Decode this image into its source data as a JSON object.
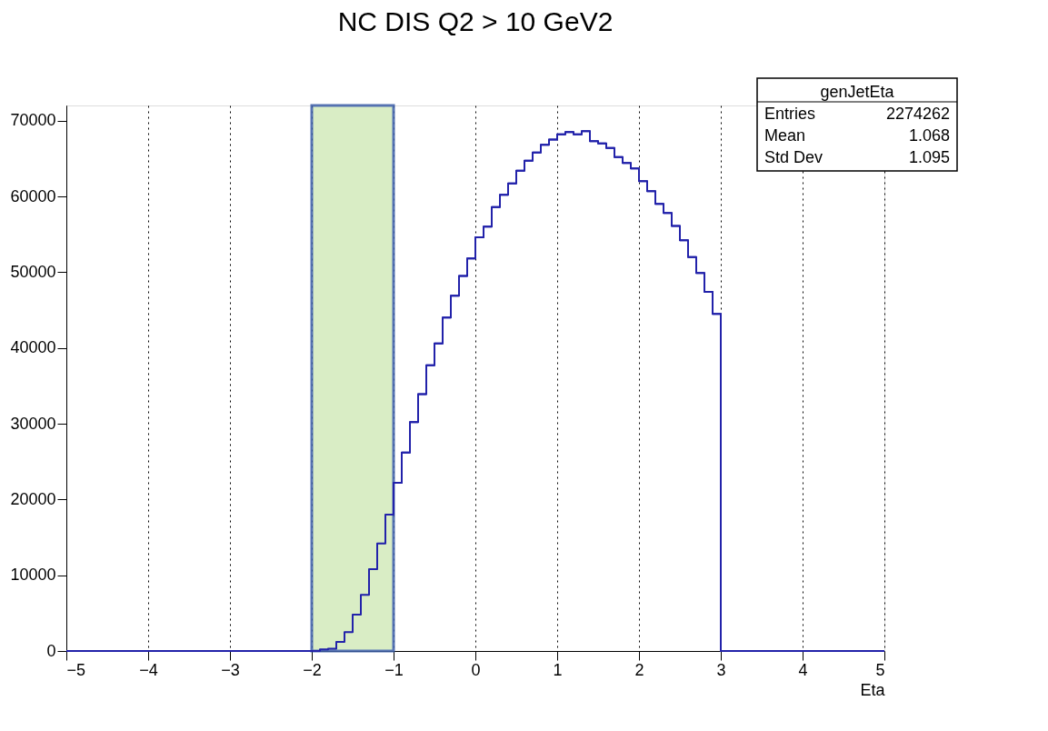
{
  "chart_data": {
    "type": "histogram",
    "title": "NC DIS Q2 > 10 GeV2",
    "xlabel": "Eta",
    "bins": [
      -5.0,
      -4.9,
      -4.8,
      -4.7,
      -4.6,
      -4.5,
      -4.4,
      -4.3,
      -4.2,
      -4.1,
      -4.0,
      -3.9,
      -3.8,
      -3.7,
      -3.6,
      -3.5,
      -3.4,
      -3.3,
      -3.2,
      -3.1,
      -3.0,
      -2.9,
      -2.8,
      -2.7,
      -2.6,
      -2.5,
      -2.4,
      -2.3,
      -2.2,
      -2.1,
      -2.0,
      -1.9,
      -1.8,
      -1.7,
      -1.6,
      -1.5,
      -1.4,
      -1.3,
      -1.2,
      -1.1,
      -1.0,
      -0.9,
      -0.8,
      -0.7,
      -0.6,
      -0.5,
      -0.4,
      -0.3,
      -0.2,
      -0.1,
      0.0,
      0.1,
      0.2,
      0.3,
      0.4,
      0.5,
      0.6,
      0.7,
      0.8,
      0.9,
      1.0,
      1.1,
      1.2,
      1.3,
      1.4,
      1.5,
      1.6,
      1.7,
      1.8,
      1.9,
      2.0,
      2.1,
      2.2,
      2.3,
      2.4,
      2.5,
      2.6,
      2.7,
      2.8,
      2.9,
      3.0,
      3.1,
      3.2,
      3.3,
      3.4,
      3.5,
      3.6,
      3.7,
      3.8,
      3.9,
      4.0,
      4.1,
      4.2,
      4.3,
      4.4,
      4.5,
      4.6,
      4.7,
      4.8,
      4.9,
      5.0
    ],
    "values": [
      0,
      0,
      0,
      0,
      0,
      0,
      0,
      0,
      0,
      0,
      0,
      0,
      0,
      0,
      0,
      0,
      0,
      0,
      0,
      0,
      0,
      0,
      0,
      0,
      0,
      0,
      0,
      0,
      0,
      0,
      0,
      200,
      300,
      1200,
      2500,
      4800,
      7400,
      10800,
      14200,
      18000,
      22200,
      26200,
      30200,
      33900,
      37700,
      40600,
      44000,
      46900,
      49500,
      51800,
      54600,
      56000,
      58600,
      60200,
      61700,
      63400,
      64700,
      65800,
      66800,
      67500,
      68200,
      68500,
      68200,
      68600,
      67300,
      67000,
      66400,
      65200,
      64400,
      63700,
      62000,
      60700,
      59000,
      57800,
      56100,
      54200,
      52000,
      49900,
      47400,
      44500,
      0,
      0,
      0,
      0,
      0,
      0,
      0,
      0,
      0,
      0,
      0,
      0,
      0,
      0,
      0,
      0,
      0,
      0,
      0,
      0
    ],
    "color": "#2222aa",
    "xlim": [
      -5,
      5
    ],
    "xticks": [
      -5,
      -4,
      -3,
      -2,
      -1,
      0,
      1,
      2,
      3,
      4,
      5
    ],
    "ylim": [
      0,
      72000
    ],
    "yticks": [
      0,
      10000,
      20000,
      30000,
      40000,
      50000,
      60000,
      70000
    ],
    "grid": "x",
    "bands": [
      {
        "axis": "x",
        "from": -2,
        "to": -1,
        "color": "#d3eabc"
      }
    ],
    "annotations": [
      "genJetEta",
      "Entries 2274262",
      "Mean 1.068",
      "Std Dev 1.095"
    ]
  }
}
